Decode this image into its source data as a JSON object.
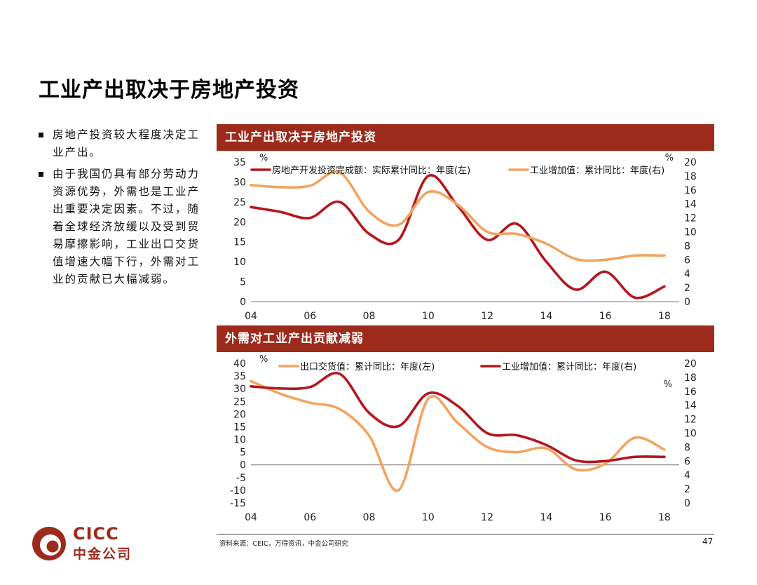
{
  "page": {
    "title": "工业产出取决于房地产投资",
    "bullets": [
      "房地产投资较大程度决定工业产出。",
      "由于我国仍具有部分劳动力资源优势，外需也是工业产出重要决定因素。不过，随着全球经济放缓以及受到贸易摩擦影响，工业出口交货值增速大幅下行，外需对工业的贡献已大幅减弱。"
    ],
    "source": "资料来源：CEIC，万得资讯，中金公司研究",
    "page_number": "47",
    "logo": {
      "text_top": "CICC",
      "text_bottom": "中金公司"
    }
  },
  "colors": {
    "red": "#b5161d",
    "orange": "#f2a45f",
    "header_bg": "#9d2b1c",
    "brand": "#9d2b1c"
  },
  "chart_data": [
    {
      "type": "line",
      "title": "工业产出取决于房地产投资",
      "x_ticks": [
        "04",
        "06",
        "08",
        "10",
        "12",
        "14",
        "16",
        "18"
      ],
      "xlim": [
        2004,
        2018.5
      ],
      "left_axis": {
        "unit": "%",
        "ylim": [
          0,
          35
        ],
        "ticks": [
          0,
          5,
          10,
          15,
          20,
          25,
          30,
          35
        ]
      },
      "right_axis": {
        "unit": "%",
        "ylim": [
          0,
          20
        ],
        "ticks": [
          0,
          2,
          4,
          6,
          8,
          10,
          12,
          14,
          16,
          18,
          20
        ]
      },
      "series": [
        {
          "name": "房地产开发投资完成额：实际累计同比：年度(左)",
          "axis": "left",
          "color": "#b5161d",
          "x": [
            2004,
            2005,
            2006,
            2007,
            2008,
            2009,
            2010,
            2011,
            2012,
            2013,
            2014,
            2015,
            2016,
            2017,
            2018
          ],
          "values": [
            23.7,
            22.5,
            21.0,
            25.0,
            17.0,
            15.5,
            31.5,
            24.0,
            15.5,
            19.5,
            10.0,
            3.0,
            7.5,
            1.0,
            3.8
          ]
        },
        {
          "name": "工业增加值：累计同比：年度(右)",
          "axis": "right",
          "color": "#f2a45f",
          "x": [
            2004,
            2005,
            2006,
            2007,
            2008,
            2009,
            2010,
            2011,
            2012,
            2013,
            2014,
            2015,
            2016,
            2017,
            2018
          ],
          "values": [
            16.7,
            16.4,
            16.6,
            18.5,
            12.9,
            11.0,
            15.7,
            13.9,
            10.0,
            9.7,
            8.3,
            6.1,
            6.0,
            6.6,
            6.6
          ]
        }
      ]
    },
    {
      "type": "line",
      "title": "外需对工业产出贡献减弱",
      "x_ticks": [
        "04",
        "06",
        "08",
        "10",
        "12",
        "14",
        "16",
        "18"
      ],
      "xlim": [
        2004,
        2018.5
      ],
      "left_axis": {
        "unit": "%",
        "ylim": [
          -15,
          40
        ],
        "ticks": [
          -15,
          -10,
          -5,
          0,
          5,
          10,
          15,
          20,
          25,
          30,
          35,
          40
        ]
      },
      "right_axis": {
        "unit": "%",
        "ylim": [
          0,
          20
        ],
        "ticks": [
          0,
          2,
          4,
          6,
          8,
          10,
          12,
          14,
          16,
          18,
          20
        ]
      },
      "series": [
        {
          "name": "出口交货值：累计同比：年度(左)",
          "axis": "left",
          "color": "#f2a45f",
          "x": [
            2004,
            2005,
            2006,
            2007,
            2008,
            2009,
            2010,
            2011,
            2012,
            2013,
            2014,
            2015,
            2016,
            2017,
            2018
          ],
          "values": [
            33.0,
            28.0,
            24.5,
            22.0,
            11.5,
            -10.0,
            26.0,
            16.5,
            7.0,
            5.0,
            6.5,
            -1.8,
            0.5,
            10.7,
            6.0
          ]
        },
        {
          "name": "工业增加值：累计同比：年度(右)",
          "axis": "right",
          "color": "#b5161d",
          "x": [
            2004,
            2005,
            2006,
            2007,
            2008,
            2009,
            2010,
            2011,
            2012,
            2013,
            2014,
            2015,
            2016,
            2017,
            2018
          ],
          "values": [
            16.7,
            16.4,
            16.6,
            18.5,
            12.9,
            11.0,
            15.7,
            13.9,
            10.0,
            9.7,
            8.3,
            6.1,
            6.0,
            6.6,
            6.6
          ]
        }
      ]
    }
  ]
}
